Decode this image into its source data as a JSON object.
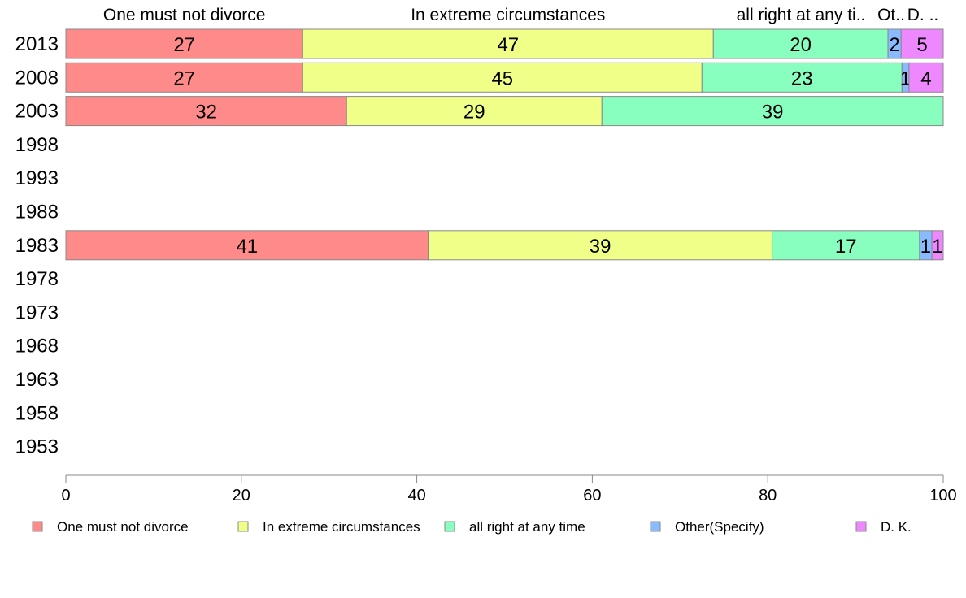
{
  "chart_data": {
    "type": "bar",
    "orientation": "horizontal",
    "stacked": true,
    "categories": [
      "2013",
      "2008",
      "2003",
      "1998",
      "1993",
      "1988",
      "1983",
      "1978",
      "1973",
      "1968",
      "1963",
      "1958",
      "1953"
    ],
    "series": [
      {
        "name": "One must not divorce",
        "color": "#ff8a8a",
        "values": [
          27,
          27,
          32,
          null,
          null,
          null,
          41.3,
          null,
          null,
          null,
          null,
          null,
          null
        ],
        "labels": [
          "27",
          "27",
          "32",
          "",
          "",
          "",
          "41",
          "",
          "",
          "",
          "",
          "",
          ""
        ]
      },
      {
        "name": "In extreme circumstances",
        "color": "#f0ff88",
        "values": [
          46.8,
          45.5,
          29.1,
          null,
          null,
          null,
          39.2,
          null,
          null,
          null,
          null,
          null,
          null
        ],
        "labels": [
          "47",
          "45",
          "29",
          "",
          "",
          "",
          "39",
          "",
          "",
          "",
          "",
          "",
          ""
        ]
      },
      {
        "name": "all right at any time",
        "color": "#88ffbf",
        "values": [
          19.9,
          22.8,
          38.9,
          null,
          null,
          null,
          16.8,
          null,
          null,
          null,
          null,
          null,
          null
        ],
        "labels": [
          "20",
          "23",
          "39",
          "",
          "",
          "",
          "17",
          "",
          "",
          "",
          "",
          "",
          ""
        ]
      },
      {
        "name": "Other(Specify)",
        "color": "#88bbff",
        "values": [
          1.5,
          0.8,
          0,
          null,
          null,
          null,
          1.4,
          null,
          null,
          null,
          null,
          null,
          null
        ],
        "labels": [
          "2",
          "1",
          "",
          "",
          "",
          "",
          "1",
          "",
          "",
          "",
          "",
          "",
          ""
        ]
      },
      {
        "name": "D. K.",
        "color": "#ee88ff",
        "values": [
          4.8,
          3.9,
          0,
          null,
          null,
          null,
          1.3,
          null,
          null,
          null,
          null,
          null,
          null
        ],
        "labels": [
          "5",
          "4",
          "",
          "",
          "",
          "",
          "1",
          "",
          "",
          "",
          "",
          "",
          ""
        ]
      }
    ],
    "header_labels": [
      "One must not divorce",
      "In extreme circumstances",
      "all right at any ti..",
      "Ot..",
      "D. .."
    ],
    "xlim": [
      0,
      100
    ],
    "xticks": [
      "0",
      "20",
      "40",
      "60",
      "80",
      "100"
    ],
    "grid": false,
    "legend_position": "bottom"
  }
}
